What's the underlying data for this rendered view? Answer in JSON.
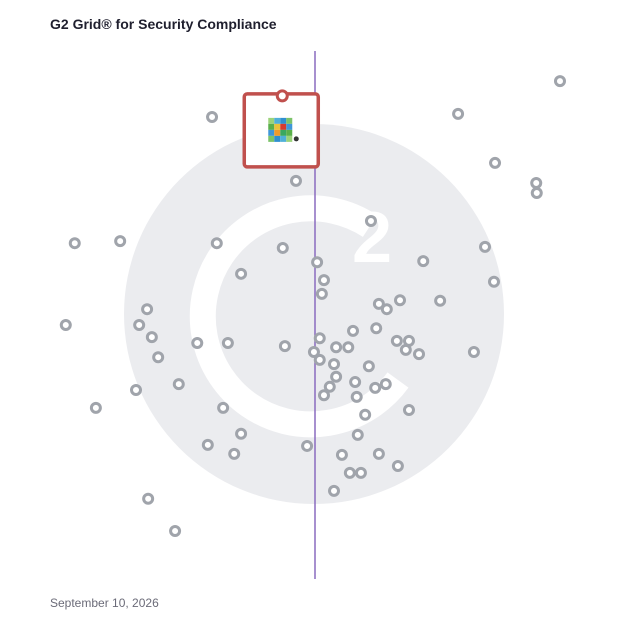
{
  "chart_data": {
    "type": "scatter",
    "title": "G2 Grid® for Security Compliance",
    "footer": "September 10, 2026",
    "xlim": [
      0,
      100
    ],
    "ylim": [
      0,
      100
    ],
    "color": "#a0a4ab",
    "highlight_color": "#c0504d",
    "highlight_index": 0,
    "x": [
      43.8,
      96.4,
      30.5,
      77.1,
      84.1,
      91.9,
      92.0,
      46.4,
      60.6,
      4.5,
      13.1,
      31.4,
      43.9,
      82.2,
      70.5,
      50.4,
      36.0,
      51.7,
      83.9,
      51.3,
      66.1,
      73.7,
      62.1,
      63.6,
      18.2,
      2.8,
      16.7,
      57.2,
      61.6,
      19.1,
      50.9,
      27.7,
      33.5,
      44.3,
      54.0,
      56.3,
      65.5,
      67.8,
      67.2,
      69.7,
      80.1,
      49.8,
      20.3,
      50.9,
      53.6,
      60.2,
      54.0,
      24.2,
      16.1,
      57.6,
      63.4,
      61.4,
      52.8,
      51.7,
      57.9,
      8.5,
      32.6,
      67.8,
      59.5,
      36.0,
      58.1,
      29.7,
      48.5,
      34.7,
      55.1,
      62.1,
      65.7,
      56.6,
      58.7,
      53.6,
      18.4,
      23.5
    ],
    "values": [
      91.5,
      94.3,
      87.5,
      88.1,
      78.8,
      75.0,
      73.1,
      75.4,
      67.8,
      63.6,
      64.0,
      63.6,
      62.7,
      62.9,
      60.2,
      60.0,
      57.8,
      56.6,
      56.3,
      54.0,
      52.8,
      52.7,
      52.1,
      51.1,
      51.1,
      48.1,
      48.1,
      47.0,
      47.5,
      45.8,
      45.6,
      44.7,
      44.7,
      44.1,
      43.9,
      43.9,
      45.1,
      45.1,
      43.4,
      42.6,
      43.0,
      43.0,
      42.0,
      41.5,
      40.7,
      40.3,
      38.3,
      36.9,
      35.8,
      37.3,
      36.9,
      36.2,
      36.4,
      34.8,
      34.5,
      32.4,
      32.4,
      32.0,
      31.1,
      27.5,
      27.3,
      25.4,
      25.2,
      23.7,
      23.5,
      23.7,
      21.4,
      20.1,
      20.1,
      16.7,
      15.2,
      9.1
    ]
  }
}
